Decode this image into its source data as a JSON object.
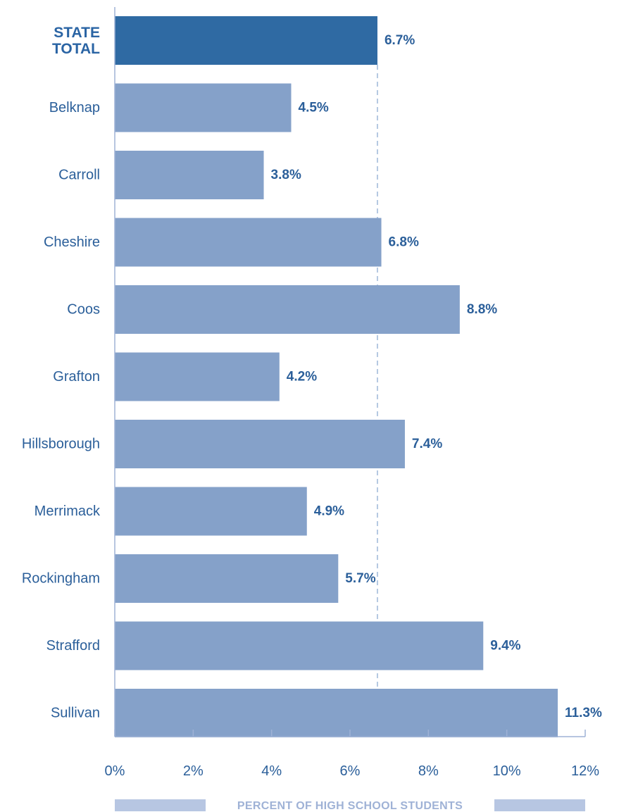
{
  "chart_data": {
    "type": "bar",
    "orientation": "horizontal",
    "categories": [
      "STATE TOTAL",
      "Belknap",
      "Carroll",
      "Cheshire",
      "Coos",
      "Grafton",
      "Hillsborough",
      "Merrimack",
      "Rockingham",
      "Strafford",
      "Sullivan"
    ],
    "values": [
      6.7,
      4.5,
      3.8,
      6.8,
      8.8,
      4.2,
      7.4,
      4.9,
      5.7,
      9.4,
      11.3
    ],
    "value_labels": [
      "6.7%",
      "4.5%",
      "3.8%",
      "6.8%",
      "8.8%",
      "4.2%",
      "7.4%",
      "4.9%",
      "5.7%",
      "9.4%",
      "11.3%"
    ],
    "highlight_category": "STATE TOTAL",
    "reference_line": 6.7,
    "xlabel": "PERCENT OF HIGH SCHOOL STUDENTS",
    "xlim": [
      0,
      12
    ],
    "x_ticks": [
      0,
      2,
      4,
      6,
      8,
      10,
      12
    ],
    "x_tick_labels": [
      "0%",
      "2%",
      "4%",
      "6%",
      "8%",
      "10%",
      "12%"
    ],
    "grid": false,
    "legend": "none",
    "colors": {
      "bar": "#85a1c9",
      "highlight_bar": "#2f6aa3",
      "text": "#2b5f9a",
      "axis": "#9fb2d6",
      "reference_line": "#b5c8e2",
      "xlabel_band": "#b7c6e2"
    }
  }
}
